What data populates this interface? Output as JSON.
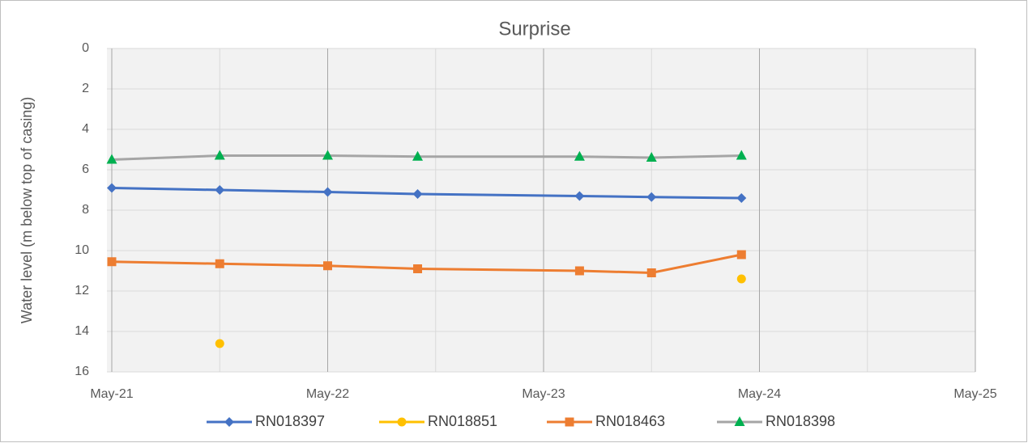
{
  "chart_data": {
    "type": "line",
    "title": "Surprise",
    "ylabel": "Water level (m below top of casing)",
    "x": [
      "2021-05",
      "2021-11",
      "2022-05",
      "2022-10",
      "2023-07",
      "2023-11",
      "2024-04"
    ],
    "series": [
      {
        "name": "RN018397",
        "color": "#4472c4",
        "marker": "diamond",
        "values": [
          6.9,
          7.0,
          7.1,
          7.2,
          7.3,
          7.35,
          7.4
        ]
      },
      {
        "name": "RN018851",
        "color": "#ffc000",
        "marker": "circle",
        "values": [
          null,
          14.6,
          null,
          null,
          null,
          null,
          11.4
        ]
      },
      {
        "name": "RN018463",
        "color": "#ed7d31",
        "marker": "square",
        "values": [
          10.55,
          10.65,
          10.75,
          10.9,
          11.0,
          11.1,
          10.2
        ]
      },
      {
        "name": "RN018398",
        "color": "#a5a5a5",
        "marker": "triangle",
        "marker_color": "#00b050",
        "values": [
          5.5,
          5.3,
          5.3,
          5.35,
          5.35,
          5.4,
          5.3
        ]
      }
    ],
    "xlim": [
      "2021-05",
      "2025-05"
    ],
    "xticks": [
      {
        "value": "2021-05",
        "label": "May-21"
      },
      {
        "value": "2022-05",
        "label": "May-22"
      },
      {
        "value": "2023-05",
        "label": "May-23"
      },
      {
        "value": "2024-05",
        "label": "May-24"
      },
      {
        "value": "2025-05",
        "label": "May-25"
      }
    ],
    "xminor": [
      "2021-11",
      "2022-11",
      "2023-11",
      "2024-11"
    ],
    "ylim": [
      0,
      16
    ],
    "yticks": [
      0,
      2,
      4,
      6,
      8,
      10,
      12,
      14,
      16
    ],
    "y_reversed": true,
    "grid": true,
    "legend": "bottom"
  }
}
